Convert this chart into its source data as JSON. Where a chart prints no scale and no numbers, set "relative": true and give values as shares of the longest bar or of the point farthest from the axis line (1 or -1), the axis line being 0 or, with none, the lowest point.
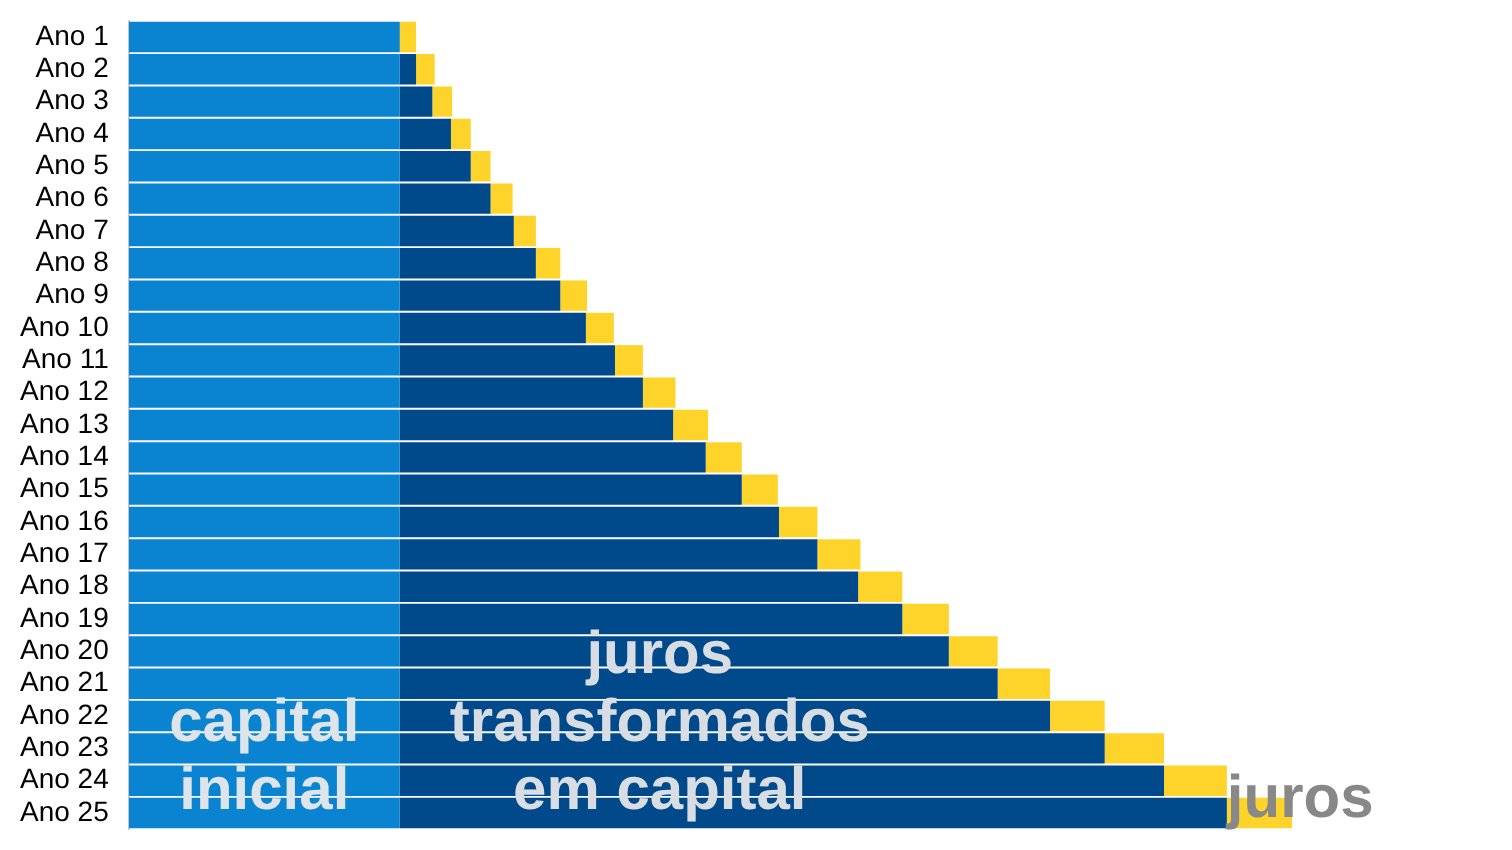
{
  "chart_data": {
    "type": "bar",
    "orientation": "horizontal",
    "stacked": true,
    "relative": true,
    "legend": false,
    "categories": [
      "Ano 1",
      "Ano 2",
      "Ano 3",
      "Ano 4",
      "Ano 5",
      "Ano 6",
      "Ano 7",
      "Ano 8",
      "Ano 9",
      "Ano 10",
      "Ano 11",
      "Ano 12",
      "Ano 13",
      "Ano 14",
      "Ano 15",
      "Ano 16",
      "Ano 17",
      "Ano 18",
      "Ano 19",
      "Ano 20",
      "Ano 21",
      "Ano 22",
      "Ano 23",
      "Ano 24",
      "Ano 25"
    ],
    "series": [
      {
        "name": "capital inicial",
        "color": "#0a84d0",
        "values": [
          0.233,
          0.233,
          0.233,
          0.233,
          0.233,
          0.233,
          0.233,
          0.233,
          0.233,
          0.233,
          0.233,
          0.233,
          0.233,
          0.233,
          0.233,
          0.233,
          0.233,
          0.233,
          0.233,
          0.233,
          0.233,
          0.233,
          0.233,
          0.233,
          0.233
        ]
      },
      {
        "name": "juros transformados em capital",
        "color": "#004a8c",
        "values": [
          0,
          0.014,
          0.028,
          0.044,
          0.061,
          0.078,
          0.098,
          0.117,
          0.138,
          0.16,
          0.185,
          0.209,
          0.235,
          0.263,
          0.294,
          0.326,
          0.359,
          0.394,
          0.432,
          0.472,
          0.514,
          0.559,
          0.606,
          0.657,
          0.711
        ]
      },
      {
        "name": "juros",
        "color": "#ffd42a",
        "values": [
          0.014,
          0.016,
          0.017,
          0.017,
          0.017,
          0.019,
          0.019,
          0.021,
          0.023,
          0.024,
          0.024,
          0.028,
          0.03,
          0.031,
          0.031,
          0.033,
          0.037,
          0.038,
          0.04,
          0.042,
          0.045,
          0.047,
          0.051,
          0.054,
          0.056
        ]
      }
    ]
  }
}
